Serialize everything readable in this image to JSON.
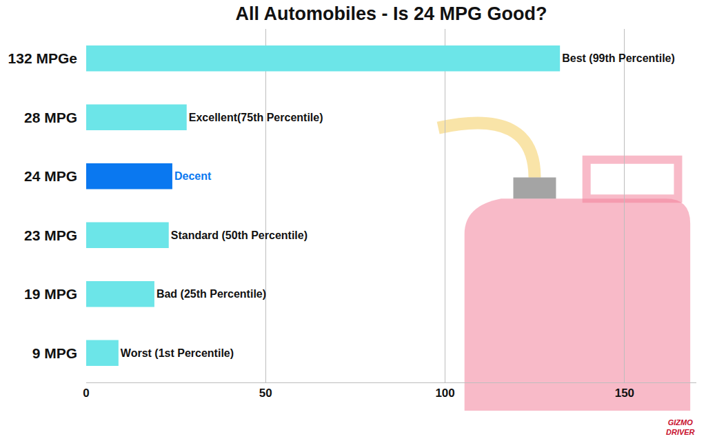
{
  "chart_data": {
    "type": "bar",
    "orientation": "horizontal",
    "title": "All Automobiles - Is 24 MPG Good?",
    "categories": [
      "132 MPGe",
      "28 MPG",
      "24 MPG",
      "23 MPG",
      "19 MPG",
      "9 MPG"
    ],
    "values": [
      132,
      28,
      24,
      23,
      19,
      9
    ],
    "colors": [
      "#6ce5e8",
      "#6ce5e8",
      "#0a78f0",
      "#6ce5e8",
      "#6ce5e8",
      "#6ce5e8"
    ],
    "annotations": [
      "Best (99th Percentile)",
      "Excellent(75th Percentile)",
      "Decent",
      "Standard (50th Percentile)",
      "Bad (25th Percentile)",
      "Worst (1st Percentile)"
    ],
    "xlim": [
      0,
      170
    ],
    "xticks": [
      0,
      50,
      100,
      150
    ],
    "grid": true,
    "logo": [
      "GIZMO",
      "DRIVER"
    ]
  }
}
